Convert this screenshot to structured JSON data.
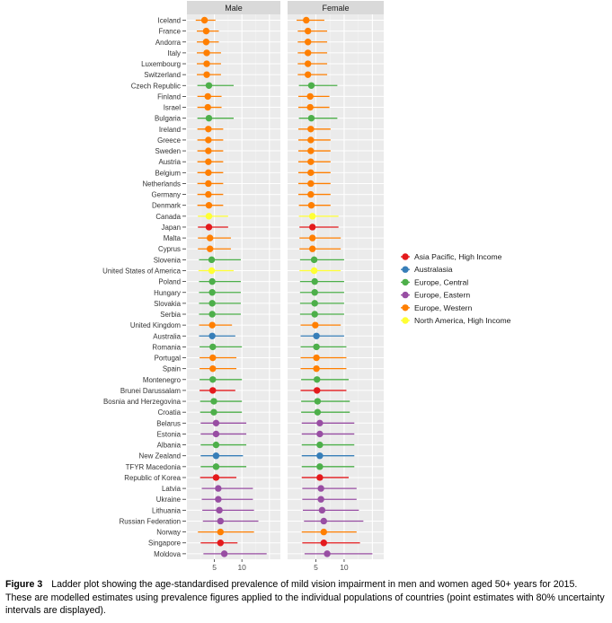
{
  "chart_data": {
    "type": "dot",
    "panels": [
      "Male",
      "Female"
    ],
    "xlim": [
      0,
      17
    ],
    "x_ticks": [
      5,
      10
    ],
    "countries": [
      "Iceland",
      "France",
      "Andorra",
      "Italy",
      "Luxembourg",
      "Switzerland",
      "Czech Republic",
      "Finland",
      "Israel",
      "Bulgaria",
      "Ireland",
      "Greece",
      "Sweden",
      "Austria",
      "Belgium",
      "Netherlands",
      "Germany",
      "Denmark",
      "Canada",
      "Japan",
      "Malta",
      "Cyprus",
      "Slovenia",
      "United States of America",
      "Poland",
      "Hungary",
      "Slovakia",
      "Serbia",
      "United Kingdom",
      "Australia",
      "Romania",
      "Portugal",
      "Spain",
      "Montenegro",
      "Brunei Darussalam",
      "Bosnia and Herzegovina",
      "Croatia",
      "Belarus",
      "Estonia",
      "Albania",
      "New Zealand",
      "TFYR Macedonia",
      "Republic of Korea",
      "Latvia",
      "Ukraine",
      "Lithuania",
      "Russian Federation",
      "Norway",
      "Singapore",
      "Moldova"
    ],
    "regions": [
      "Europe, Western",
      "Europe, Western",
      "Europe, Western",
      "Europe, Western",
      "Europe, Western",
      "Europe, Western",
      "Europe, Central",
      "Europe, Western",
      "Europe, Western",
      "Europe, Central",
      "Europe, Western",
      "Europe, Western",
      "Europe, Western",
      "Europe, Western",
      "Europe, Western",
      "Europe, Western",
      "Europe, Western",
      "Europe, Western",
      "North America, High Income",
      "Asia Pacific, High Income",
      "Europe, Western",
      "Europe, Western",
      "Europe, Central",
      "North America, High Income",
      "Europe, Central",
      "Europe, Central",
      "Europe, Central",
      "Europe, Central",
      "Europe, Western",
      "Australasia",
      "Europe, Central",
      "Europe, Western",
      "Europe, Western",
      "Europe, Central",
      "Asia Pacific, High Income",
      "Europe, Central",
      "Europe, Central",
      "Europe, Eastern",
      "Europe, Eastern",
      "Europe, Central",
      "Australasia",
      "Europe, Central",
      "Asia Pacific, High Income",
      "Europe, Eastern",
      "Europe, Eastern",
      "Europe, Eastern",
      "Europe, Eastern",
      "Europe, Western",
      "Asia Pacific, High Income",
      "Europe, Eastern"
    ],
    "male": {
      "estimate": [
        3.2,
        3.5,
        3.5,
        3.6,
        3.6,
        3.6,
        4.0,
        3.8,
        3.8,
        4.0,
        3.9,
        3.9,
        3.9,
        3.9,
        3.9,
        3.9,
        3.9,
        4.0,
        4.0,
        4.0,
        4.2,
        4.2,
        4.5,
        4.5,
        4.6,
        4.6,
        4.6,
        4.6,
        4.6,
        4.6,
        4.7,
        4.7,
        4.7,
        4.7,
        4.7,
        4.9,
        4.9,
        5.3,
        5.3,
        5.3,
        5.3,
        5.3,
        5.3,
        5.7,
        5.7,
        5.9,
        6.1,
        6.1,
        6.1,
        6.8
      ],
      "low": [
        1.6,
        1.8,
        1.8,
        1.8,
        1.8,
        1.8,
        1.9,
        1.9,
        1.9,
        1.9,
        1.9,
        1.9,
        1.9,
        1.9,
        1.9,
        1.9,
        1.9,
        1.9,
        2.0,
        2.0,
        2.0,
        2.0,
        2.2,
        2.1,
        2.2,
        2.2,
        2.2,
        2.2,
        2.2,
        2.2,
        2.3,
        2.3,
        2.3,
        2.3,
        2.3,
        2.4,
        2.4,
        2.5,
        2.5,
        2.5,
        2.5,
        2.5,
        2.4,
        2.7,
        2.7,
        2.8,
        2.9,
        2.0,
        2.5,
        3.0
      ],
      "high": [
        5.2,
        5.8,
        5.8,
        6.2,
        6.2,
        6.2,
        8.5,
        6.3,
        6.3,
        8.5,
        6.6,
        6.6,
        6.6,
        6.6,
        6.6,
        6.6,
        6.6,
        6.6,
        7.5,
        7.5,
        8.0,
        8.0,
        9.8,
        8.5,
        9.8,
        9.8,
        9.8,
        9.8,
        8.2,
        8.8,
        10.0,
        9.0,
        9.0,
        10.0,
        8.8,
        10.0,
        10.0,
        10.8,
        10.8,
        10.8,
        10.2,
        10.8,
        9.0,
        12.0,
        12.0,
        12.2,
        13.0,
        12.2,
        9.2,
        14.5
      ]
    },
    "female": {
      "estimate": [
        3.3,
        3.6,
        3.6,
        3.6,
        3.6,
        3.6,
        4.2,
        4.0,
        4.0,
        4.2,
        4.1,
        4.1,
        4.1,
        4.1,
        4.1,
        4.1,
        4.1,
        4.2,
        4.4,
        4.4,
        4.4,
        4.4,
        4.7,
        4.7,
        4.8,
        4.8,
        4.8,
        4.8,
        4.9,
        5.1,
        5.1,
        5.1,
        5.1,
        5.2,
        5.2,
        5.3,
        5.3,
        5.7,
        5.7,
        5.7,
        5.7,
        5.7,
        5.7,
        5.9,
        5.9,
        6.1,
        6.4,
        6.4,
        6.4,
        7.0
      ],
      "low": [
        1.6,
        1.8,
        1.8,
        1.8,
        1.8,
        1.8,
        2.0,
        1.9,
        1.9,
        2.0,
        1.9,
        1.9,
        1.9,
        1.9,
        1.9,
        1.9,
        1.9,
        2.0,
        2.0,
        2.1,
        2.1,
        2.1,
        2.2,
        2.1,
        2.2,
        2.2,
        2.2,
        2.2,
        2.3,
        2.3,
        2.3,
        2.3,
        2.3,
        2.4,
        2.3,
        2.4,
        2.4,
        2.5,
        2.5,
        2.5,
        2.5,
        2.5,
        2.5,
        2.6,
        2.6,
        2.7,
        2.9,
        2.5,
        2.6,
        3.0
      ],
      "high": [
        6.5,
        7.0,
        7.0,
        7.0,
        7.0,
        7.0,
        8.8,
        7.4,
        7.4,
        8.8,
        7.6,
        7.6,
        7.6,
        7.6,
        7.6,
        7.6,
        7.6,
        7.6,
        9.0,
        9.0,
        9.4,
        9.4,
        10.0,
        9.4,
        10.0,
        10.0,
        10.0,
        10.0,
        9.4,
        10.0,
        10.4,
        10.4,
        10.4,
        10.8,
        10.4,
        11.0,
        11.0,
        11.8,
        11.8,
        11.8,
        11.8,
        11.8,
        10.8,
        12.2,
        12.2,
        12.6,
        13.4,
        12.2,
        12.8,
        15.0
      ]
    },
    "legend": {
      "position": "right",
      "entries": [
        {
          "label": "Asia Pacific, High Income",
          "color": "#e41a1c"
        },
        {
          "label": "Australasia",
          "color": "#377eb8"
        },
        {
          "label": "Europe, Central",
          "color": "#4daf4a"
        },
        {
          "label": "Europe, Eastern",
          "color": "#984ea3"
        },
        {
          "label": "Europe, Western",
          "color": "#ff7f00"
        },
        {
          "label": "North America, High Income",
          "color": "#ffff33"
        }
      ]
    },
    "panel_background": "#ebebeb",
    "strip_background": "#d9d9d9",
    "grid": true
  },
  "caption": {
    "label": "Figure 3",
    "text": "Ladder plot showing the age-standardised prevalence of mild vision impairment in men and women aged 50+ years for 2015. These are modelled estimates using prevalence figures applied to the individual populations of countries (point estimates with 80% uncertainty intervals are displayed)."
  }
}
